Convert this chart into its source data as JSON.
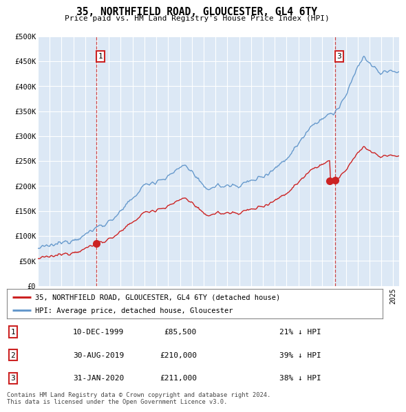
{
  "title": "35, NORTHFIELD ROAD, GLOUCESTER, GL4 6TY",
  "subtitle": "Price paid vs. HM Land Registry's House Price Index (HPI)",
  "plot_bg_color": "#dce8f5",
  "hpi_color": "#6699cc",
  "price_color": "#cc2222",
  "dashed_line_color": "#cc3333",
  "ylim_max": 500000,
  "ylim_min": 0,
  "ylabel_ticks": [
    0,
    50000,
    100000,
    150000,
    200000,
    250000,
    300000,
    350000,
    400000,
    450000,
    500000
  ],
  "ylabel_labels": [
    "£0",
    "£50K",
    "£100K",
    "£150K",
    "£200K",
    "£250K",
    "£300K",
    "£350K",
    "£400K",
    "£450K",
    "£500K"
  ],
  "chart_sale_markers": [
    {
      "label": 1,
      "date_num": 1999.94,
      "price": 85500
    },
    {
      "label": 3,
      "date_num": 2020.08,
      "price": 211000
    }
  ],
  "all_sales": [
    {
      "date_num": 1999.94,
      "price": 85500
    },
    {
      "date_num": 2019.66,
      "price": 210000
    },
    {
      "date_num": 2020.08,
      "price": 211000
    }
  ],
  "legend_entries": [
    "35, NORTHFIELD ROAD, GLOUCESTER, GL4 6TY (detached house)",
    "HPI: Average price, detached house, Gloucester"
  ],
  "table_rows": [
    {
      "num": 1,
      "date": "10-DEC-1999",
      "price": "£85,500",
      "change": "21% ↓ HPI"
    },
    {
      "num": 2,
      "date": "30-AUG-2019",
      "price": "£210,000",
      "change": "39% ↓ HPI"
    },
    {
      "num": 3,
      "date": "31-JAN-2020",
      "price": "£211,000",
      "change": "38% ↓ HPI"
    }
  ],
  "footer": "Contains HM Land Registry data © Crown copyright and database right 2024.\nThis data is licensed under the Open Government Licence v3.0.",
  "xmin": 1995.0,
  "xmax": 2025.5
}
